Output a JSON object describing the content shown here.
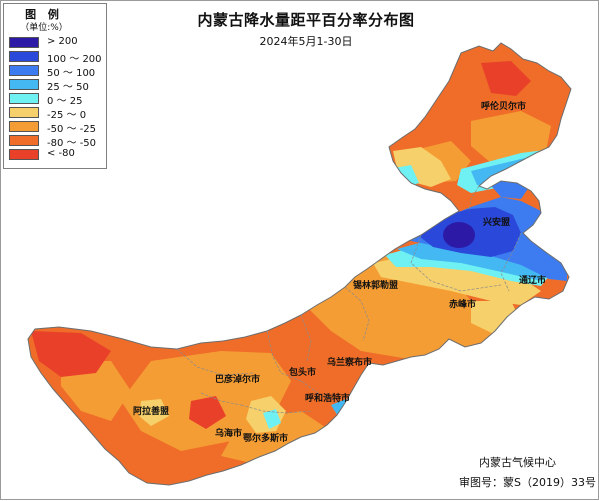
{
  "map": {
    "title": "内蒙古降水量距平百分率分布图",
    "subtitle": "2024年5月1-30日"
  },
  "legend": {
    "title": "图 例",
    "unit": "（单位:%）",
    "items": [
      {
        "label": "> 200",
        "color": "#2c1aa6"
      },
      {
        "label": "100 ～ 200",
        "color": "#2a48d9"
      },
      {
        "label": "50 ～ 100",
        "color": "#3d7cf0"
      },
      {
        "label": "25 ～ 50",
        "color": "#43b8f2"
      },
      {
        "label": "0 ～ 25",
        "color": "#6ff0f2"
      },
      {
        "label": "-25 ～ 0",
        "color": "#f6d06a"
      },
      {
        "label": "-50 ～ -25",
        "color": "#f59d35"
      },
      {
        "label": "-80 ～ -50",
        "color": "#ef6d28"
      },
      {
        "label": "< -80",
        "color": "#e9402a"
      }
    ]
  },
  "cities": [
    {
      "name": "呼伦贝尔市"
    },
    {
      "name": "兴安盟"
    },
    {
      "name": "通辽市"
    },
    {
      "name": "赤峰市"
    },
    {
      "name": "锡林郭勒盟"
    },
    {
      "name": "乌兰察布市"
    },
    {
      "name": "包头市"
    },
    {
      "name": "呼和浩特市"
    },
    {
      "name": "巴彦淖尔市"
    },
    {
      "name": "阿拉善盟"
    },
    {
      "name": "乌海市"
    },
    {
      "name": "鄂尔多斯市"
    }
  ],
  "credits": {
    "agency": "内蒙古气候中心",
    "approval": "审图号：蒙S（2019）33号"
  }
}
